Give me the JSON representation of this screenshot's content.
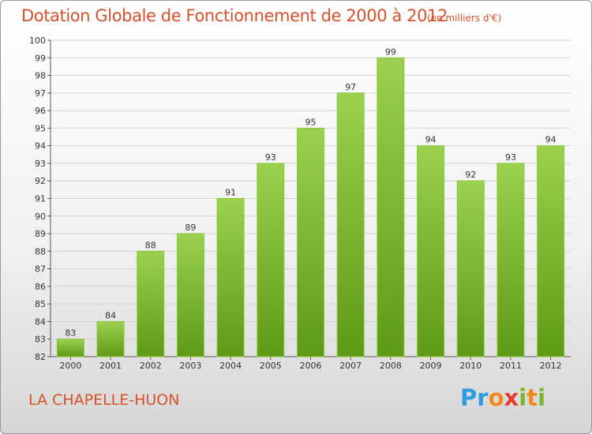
{
  "header": {
    "title": "Dotation Globale de Fonctionnement de 2000 à 2012",
    "subtitle": "(en milliers d'€)"
  },
  "footer": {
    "commune": "LA CHAPELLE-HUON",
    "logo_text": "Proxiti"
  },
  "colors": {
    "accent": "#d8512a",
    "bar_top": "#9bd14e",
    "bar_bottom": "#5e9a16"
  },
  "chart_data": {
    "type": "bar",
    "categories": [
      "2000",
      "2001",
      "2002",
      "2003",
      "2004",
      "2005",
      "2006",
      "2007",
      "2008",
      "2009",
      "2010",
      "2011",
      "2012"
    ],
    "values": [
      83,
      84,
      88,
      89,
      91,
      93,
      95,
      97,
      99,
      94,
      92,
      93,
      94
    ],
    "title": "Dotation Globale de Fonctionnement de 2000 à 2012",
    "subtitle": "(en milliers d'€)",
    "ylim": [
      82,
      100
    ],
    "yticks": [
      82,
      83,
      84,
      85,
      86,
      87,
      88,
      89,
      90,
      91,
      92,
      93,
      94,
      95,
      96,
      97,
      98,
      99,
      100
    ],
    "grid": true,
    "legend": "none"
  }
}
